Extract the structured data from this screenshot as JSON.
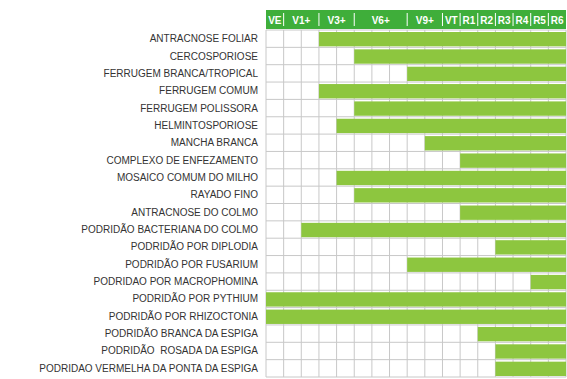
{
  "chart_data": {
    "type": "gantt",
    "orientation": "horizontal",
    "color": "#8dc63f",
    "grid": true,
    "tick_labels": false,
    "xlim": [
      0,
      17
    ],
    "stages": [
      {
        "label": "VE",
        "start": 0,
        "end": 1
      },
      {
        "label": "V1+",
        "start": 1,
        "end": 3
      },
      {
        "label": "V3+",
        "start": 3,
        "end": 5
      },
      {
        "label": "V6+",
        "start": 5,
        "end": 8
      },
      {
        "label": "V9+",
        "start": 8,
        "end": 10
      },
      {
        "label": "VT",
        "start": 10,
        "end": 11
      },
      {
        "label": "R1",
        "start": 11,
        "end": 12
      },
      {
        "label": "R2",
        "start": 12,
        "end": 13
      },
      {
        "label": "R3",
        "start": 13,
        "end": 14
      },
      {
        "label": "R4",
        "start": 14,
        "end": 15
      },
      {
        "label": "R5",
        "start": 15,
        "end": 16
      },
      {
        "label": "R6",
        "start": 16,
        "end": 17
      }
    ],
    "categories": [
      "ANTRACNOSE FOLIAR",
      "CERCOSPORIOSE",
      "FERRUGEM BRANCA/TROPICAL",
      "FERRUGEM COMUM",
      "FERRUGEM POLISSORA",
      "HELMINTOSPORIOSE",
      "MANCHA BRANCA",
      "COMPLEXO DE ENFEZAMENTO",
      "MOSAICO COMUM DO MILHO",
      "RAYADO FINO",
      "ANTRACNOSE DO COLMO",
      "PODRIDÃO BACTERIANA DO COLMO",
      "PODRIDÃO POR DIPLODIA",
      "PODRIDÃO POR FUSARIUM",
      "PODRIDAO POR MACROPHOMINA",
      "PODRIDÃO POR PYTHIUM",
      "PODRIDÃO POR RHIZOCTONIA",
      "PODRIDÃO BRANCA DA ESPIGA",
      "PODRIDÃO  ROSADA DA ESPIGA",
      "PODRIDAO VERMELHA DA PONTA DA ESPIGA"
    ],
    "start": [
      3,
      5,
      8,
      3,
      5,
      4,
      9,
      11,
      4,
      5,
      11,
      2,
      13,
      8,
      15,
      0,
      0,
      12,
      13,
      13
    ],
    "end": [
      17,
      17,
      17,
      17,
      17,
      17,
      17,
      17,
      17,
      17,
      17,
      17,
      17,
      17,
      17,
      17,
      17,
      17,
      17,
      17
    ]
  }
}
